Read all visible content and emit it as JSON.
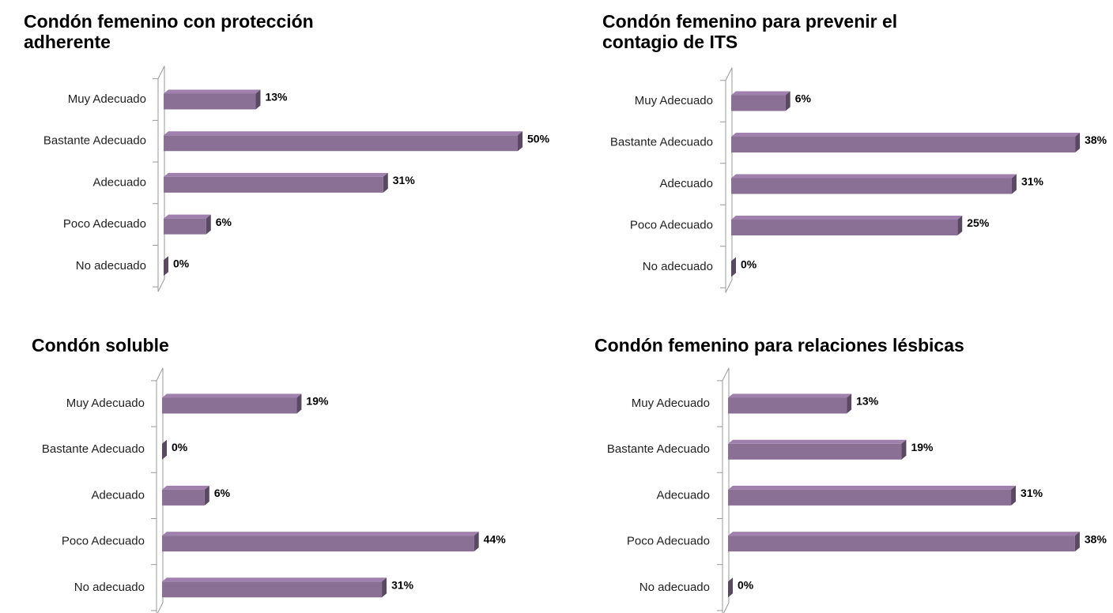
{
  "chart_data": [
    {
      "type": "bar",
      "title": "Condón femenino con protección adherente",
      "categories": [
        "Muy Adecuado",
        "Bastante Adecuado",
        "Adecuado",
        "Poco Adecuado",
        "No adecuado"
      ],
      "values": [
        13,
        50,
        31,
        6,
        0
      ],
      "value_labels": [
        "13%",
        "50%",
        "31%",
        "6%",
        "0%"
      ],
      "color": "#8b7096"
    },
    {
      "type": "bar",
      "title": "Condón femenino para prevenir el contagio de ITS",
      "categories": [
        "Muy Adecuado",
        "Bastante Adecuado",
        "Adecuado",
        "Poco Adecuado",
        "No adecuado"
      ],
      "values": [
        6,
        38,
        31,
        25,
        0
      ],
      "value_labels": [
        "6%",
        "38%",
        "31%",
        "25%",
        "0%"
      ],
      "color": "#8b7096"
    },
    {
      "type": "bar",
      "title": "Condón soluble",
      "categories": [
        "Muy Adecuado",
        "Bastante Adecuado",
        "Adecuado",
        "Poco Adecuado",
        "No adecuado"
      ],
      "values": [
        19,
        0,
        6,
        44,
        31
      ],
      "value_labels": [
        "19%",
        "0%",
        "6%",
        "44%",
        "31%"
      ],
      "color": "#8b7096"
    },
    {
      "type": "bar",
      "title": "Condón femenino para relaciones lésbicas",
      "categories": [
        "Muy Adecuado",
        "Bastante Adecuado",
        "Adecuado",
        "Poco Adecuado",
        "No adecuado"
      ],
      "values": [
        13,
        19,
        31,
        38,
        0
      ],
      "value_labels": [
        "13%",
        "19%",
        "31%",
        "38%",
        "0%"
      ],
      "color": "#8b7096"
    }
  ]
}
